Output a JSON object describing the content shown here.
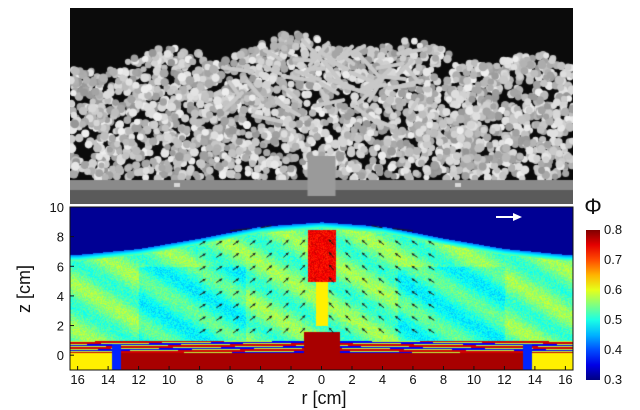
{
  "figure": {
    "top_panel": {
      "kind": "grayscale-ct-slice",
      "content": "packed rods/cylinders"
    },
    "bottom_panel": {
      "kind": "packing-fraction-heatmap",
      "arrow_field": true
    }
  },
  "chart_data": {
    "type": "heatmap",
    "title": "",
    "xlabel": "r [cm]",
    "ylabel": "z [cm]",
    "xlim": [
      -16.5,
      16.5
    ],
    "ylim": [
      -1,
      10
    ],
    "x_ticks": [
      -16,
      -14,
      -12,
      -10,
      -8,
      -6,
      -4,
      -2,
      0,
      2,
      4,
      6,
      8,
      10,
      12,
      14,
      16
    ],
    "x_tick_labels": [
      "16",
      "14",
      "12",
      "10",
      "8",
      "6",
      "4",
      "2",
      "0",
      "2",
      "4",
      "6",
      "8",
      "10",
      "12",
      "14",
      "16"
    ],
    "y_ticks": [
      0,
      2,
      4,
      6,
      8,
      10
    ],
    "y_tick_labels": [
      "0",
      "2",
      "4",
      "6",
      "8",
      "10"
    ],
    "colorbar": {
      "label": "Φ",
      "min": 0.3,
      "max": 0.8,
      "ticks": [
        0.3,
        0.4,
        0.5,
        0.6,
        0.7,
        0.8
      ],
      "tick_labels": [
        "0.3",
        "0.4",
        "0.5",
        "0.6",
        "0.7",
        "0.8"
      ],
      "colormap": "jet"
    },
    "surface_height_profile": {
      "r": [
        -16,
        -12,
        -8,
        -4,
        0,
        4,
        8,
        12,
        16
      ],
      "z": [
        6.8,
        7.2,
        7.9,
        8.7,
        9.0,
        8.7,
        7.9,
        7.2,
        6.8
      ]
    },
    "annotations": [
      {
        "kind": "arrow",
        "color": "#ffffff",
        "location": "top-right"
      }
    ]
  }
}
